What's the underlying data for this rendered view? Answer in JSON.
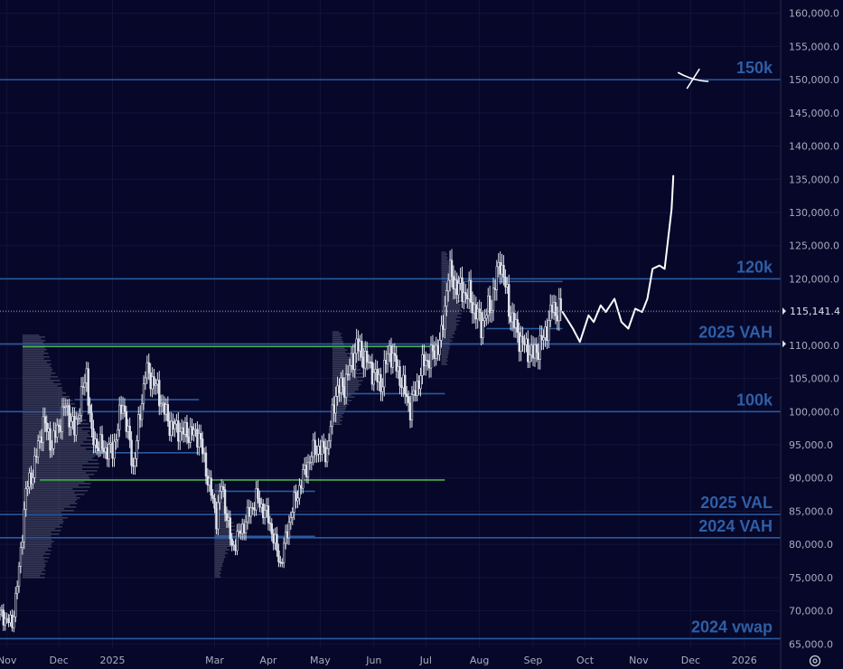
{
  "chart_data": {
    "type": "candlestick",
    "y_axis": {
      "side": "right",
      "ticks": [
        {
          "value": 65000,
          "label": "65,000.0"
        },
        {
          "value": 70000,
          "label": "70,000.0"
        },
        {
          "value": 75000,
          "label": "75,000.0"
        },
        {
          "value": 80000,
          "label": "80,000.0"
        },
        {
          "value": 85000,
          "label": "85,000.0"
        },
        {
          "value": 90000,
          "label": "90,000.0"
        },
        {
          "value": 95000,
          "label": "95,000.0"
        },
        {
          "value": 100000,
          "label": "100,000.0"
        },
        {
          "value": 105000,
          "label": "105,000.0"
        },
        {
          "value": 110000,
          "label": "110,000.0"
        },
        {
          "value": 115000,
          "label": "115,000.0"
        },
        {
          "value": 120000,
          "label": "120,000.0"
        },
        {
          "value": 125000,
          "label": "125,000.0"
        },
        {
          "value": 130000,
          "label": "130,000.0"
        },
        {
          "value": 135000,
          "label": "135,000.0"
        },
        {
          "value": 140000,
          "label": "140,000.0"
        },
        {
          "value": 145000,
          "label": "145,000.0"
        },
        {
          "value": 150000,
          "label": "150,000.0"
        },
        {
          "value": 155000,
          "label": "155,000.0"
        },
        {
          "value": 160000,
          "label": "160,000.0"
        }
      ],
      "range": [
        64500,
        162000
      ]
    },
    "x_axis": {
      "range": [
        "2024-10-28",
        "2026-01-22"
      ],
      "ticks": [
        {
          "date": "2024-11-01",
          "label": "Nov"
        },
        {
          "date": "2024-12-01",
          "label": "Dec"
        },
        {
          "date": "2025-01-01",
          "label": "2025"
        },
        {
          "date": "2025-03-01",
          "label": "Mar"
        },
        {
          "date": "2025-04-01",
          "label": "Apr"
        },
        {
          "date": "2025-05-01",
          "label": "May"
        },
        {
          "date": "2025-06-01",
          "label": "Jun"
        },
        {
          "date": "2025-07-01",
          "label": "Jul"
        },
        {
          "date": "2025-08-01",
          "label": "Aug"
        },
        {
          "date": "2025-09-01",
          "label": "Sep"
        },
        {
          "date": "2025-10-01",
          "label": "Oct"
        },
        {
          "date": "2025-11-01",
          "label": "Nov"
        },
        {
          "date": "2025-12-01",
          "label": "Dec"
        },
        {
          "date": "2026-01-01",
          "label": "2026"
        }
      ]
    },
    "last_price": {
      "value": 115141.4,
      "label": "115,141.4"
    },
    "horizontal_levels": [
      {
        "label": "150k",
        "value": 150000
      },
      {
        "label": "120k",
        "value": 120000
      },
      {
        "label": "2025 VAH",
        "value": 110200
      },
      {
        "label": "100k",
        "value": 100000
      },
      {
        "label": "2025 VAL",
        "value": 84500
      },
      {
        "label": "2024 VAH",
        "value": 81000
      },
      {
        "label": "2024 vwap",
        "value": 65800
      }
    ],
    "green_levels": [
      {
        "value": 109800,
        "from": "2024-11-10",
        "to": "2025-07-09"
      },
      {
        "value": 89700,
        "from": "2024-11-20",
        "to": "2025-07-12"
      }
    ],
    "segment_levels": [
      {
        "value": 119600,
        "from": "2025-07-11",
        "to": "2025-09-18"
      },
      {
        "value": 112500,
        "from": "2025-08-05",
        "to": "2025-09-18"
      },
      {
        "value": 102700,
        "from": "2025-05-12",
        "to": "2025-07-12"
      },
      {
        "value": 101800,
        "from": "2024-12-10",
        "to": "2025-02-20"
      },
      {
        "value": 93800,
        "from": "2024-12-20",
        "to": "2025-02-20"
      },
      {
        "value": 88000,
        "from": "2025-03-01",
        "to": "2025-04-28"
      },
      {
        "value": 81200,
        "from": "2025-03-01",
        "to": "2025-04-28"
      }
    ],
    "volume_profiles": [
      {
        "from": "2024-11-10",
        "to": "2025-03-01",
        "low": 75000,
        "high": 111500,
        "max_width_days": 45
      },
      {
        "from": "2025-05-08",
        "to": "2025-07-10",
        "low": 98000,
        "high": 112000,
        "max_width_days": 18
      },
      {
        "from": "2025-07-10",
        "to": "2025-09-18",
        "low": 107000,
        "high": 124000,
        "max_width_days": 12
      },
      {
        "from": "2025-03-01",
        "to": "2025-04-28",
        "low": 75000,
        "high": 89000,
        "max_width_days": 12
      }
    ],
    "price_path": [
      [
        "2024-10-28",
        69500
      ],
      [
        "2024-11-04",
        68000
      ],
      [
        "2024-11-08",
        76000
      ],
      [
        "2024-11-12",
        88000
      ],
      [
        "2024-11-16",
        91000
      ],
      [
        "2024-11-22",
        98500
      ],
      [
        "2024-11-27",
        95000
      ],
      [
        "2024-12-05",
        101000
      ],
      [
        "2024-12-10",
        97000
      ],
      [
        "2024-12-17",
        106000
      ],
      [
        "2024-12-20",
        96000
      ],
      [
        "2024-12-26",
        94500
      ],
      [
        "2025-01-01",
        94000
      ],
      [
        "2025-01-07",
        101500
      ],
      [
        "2025-01-13",
        91500
      ],
      [
        "2025-01-20",
        106000
      ],
      [
        "2025-01-25",
        104500
      ],
      [
        "2025-02-03",
        98000
      ],
      [
        "2025-02-10",
        97000
      ],
      [
        "2025-02-20",
        96500
      ],
      [
        "2025-02-25",
        90000
      ],
      [
        "2025-03-02",
        84000
      ],
      [
        "2025-03-05",
        89000
      ],
      [
        "2025-03-11",
        79500
      ],
      [
        "2025-03-18",
        83000
      ],
      [
        "2025-03-25",
        87000
      ],
      [
        "2025-04-01",
        84000
      ],
      [
        "2025-04-08",
        77000
      ],
      [
        "2025-04-14",
        84500
      ],
      [
        "2025-04-22",
        91000
      ],
      [
        "2025-04-28",
        94500
      ],
      [
        "2025-05-05",
        94000
      ],
      [
        "2025-05-10",
        103000
      ],
      [
        "2025-05-15",
        104000
      ],
      [
        "2025-05-22",
        110000
      ],
      [
        "2025-05-28",
        107500
      ],
      [
        "2025-06-05",
        104000
      ],
      [
        "2025-06-10",
        109500
      ],
      [
        "2025-06-17",
        104500
      ],
      [
        "2025-06-22",
        100500
      ],
      [
        "2025-06-30",
        107500
      ],
      [
        "2025-07-05",
        108500
      ],
      [
        "2025-07-10",
        111000
      ],
      [
        "2025-07-14",
        121000
      ],
      [
        "2025-07-20",
        118500
      ],
      [
        "2025-07-26",
        117500
      ],
      [
        "2025-08-02",
        113000
      ],
      [
        "2025-08-08",
        116500
      ],
      [
        "2025-08-13",
        123000
      ],
      [
        "2025-08-19",
        114500
      ],
      [
        "2025-08-25",
        110500
      ],
      [
        "2025-09-01",
        108500
      ],
      [
        "2025-09-07",
        111000
      ],
      [
        "2025-09-12",
        115500
      ],
      [
        "2025-09-17",
        115141
      ]
    ],
    "drawings": [
      {
        "type": "projection",
        "points": [
          [
            "2025-09-18",
            115000
          ],
          [
            "2025-09-24",
            112500
          ],
          [
            "2025-09-28",
            110500
          ],
          [
            "2025-10-03",
            114500
          ],
          [
            "2025-10-06",
            113500
          ],
          [
            "2025-10-10",
            116000
          ],
          [
            "2025-10-13",
            115000
          ],
          [
            "2025-10-18",
            117000
          ],
          [
            "2025-10-22",
            113500
          ],
          [
            "2025-10-26",
            112500
          ],
          [
            "2025-10-30",
            115500
          ],
          [
            "2025-11-03",
            115000
          ],
          [
            "2025-11-06",
            117000
          ],
          [
            "2025-11-09",
            121500
          ],
          [
            "2025-11-13",
            122000
          ],
          [
            "2025-11-16",
            121500
          ],
          [
            "2025-11-20",
            130500
          ],
          [
            "2025-11-21",
            135500
          ]
        ]
      },
      {
        "type": "cross",
        "center": [
          "2025-12-03",
          150000
        ]
      }
    ]
  }
}
